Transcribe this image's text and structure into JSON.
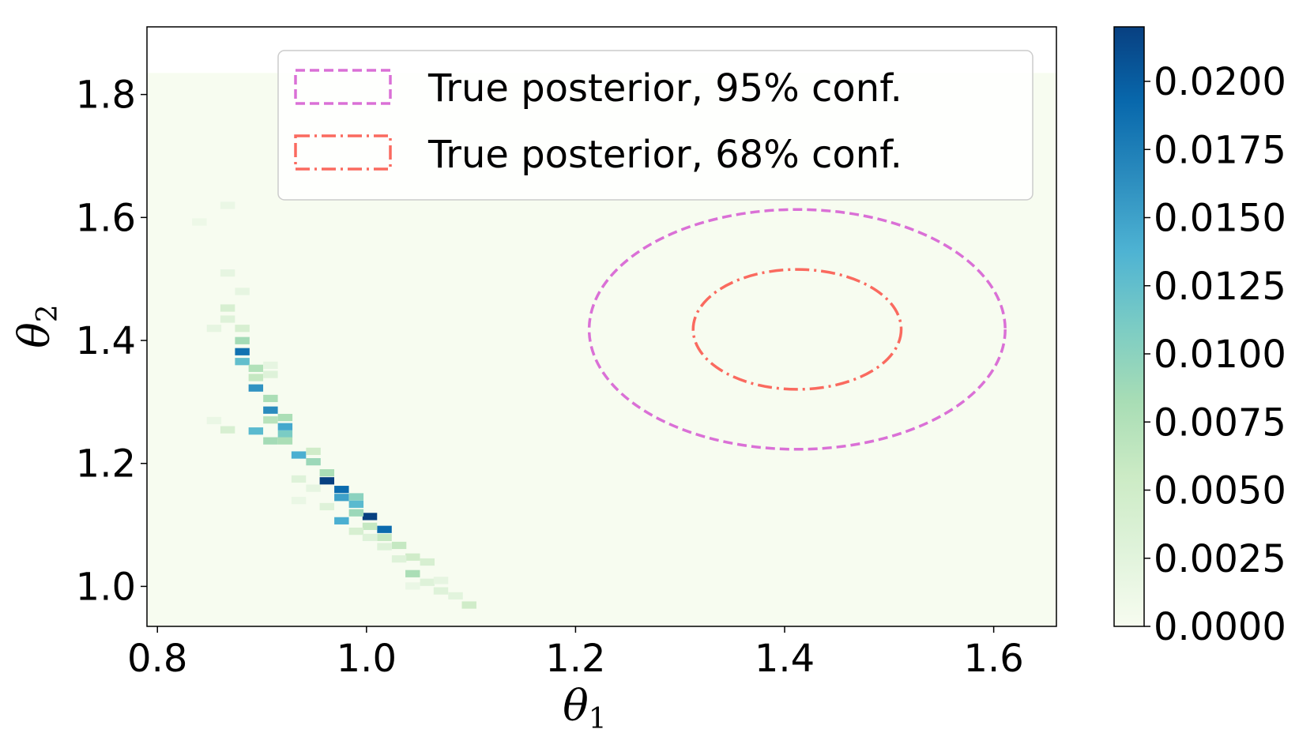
{
  "chart_data": {
    "type": "heatmap",
    "title": "",
    "xlabel": "θ",
    "xlabel_sub": "1",
    "ylabel": "θ",
    "ylabel_sub": "2",
    "xlim": [
      0.79,
      1.66
    ],
    "ylim": [
      0.935,
      1.91
    ],
    "xticks": [
      0.8,
      1.0,
      1.2,
      1.4,
      1.6
    ],
    "xtick_labels": [
      "0.8",
      "1.0",
      "1.2",
      "1.4",
      "1.6"
    ],
    "yticks": [
      1.0,
      1.2,
      1.4,
      1.6,
      1.8
    ],
    "ytick_labels": [
      "1.0",
      "1.2",
      "1.4",
      "1.6",
      "1.8"
    ],
    "colorbar": {
      "min": 0.0,
      "max": 0.022,
      "ticks": [
        0.0,
        0.0025,
        0.005,
        0.0075,
        0.01,
        0.0125,
        0.015,
        0.0175,
        0.02
      ],
      "tick_labels": [
        "0.0000",
        "0.0025",
        "0.0050",
        "0.0075",
        "0.0100",
        "0.0125",
        "0.0150",
        "0.0175",
        "0.0200"
      ],
      "colormap": "GnBu",
      "colors": [
        "#f7fcf0",
        "#e0f3db",
        "#ccebc5",
        "#a8ddb5",
        "#7bccc4",
        "#4eb3d3",
        "#2b8cbe",
        "#0868ac",
        "#084081"
      ]
    },
    "histogram": {
      "extent_x": [
        0.79,
        1.66
      ],
      "extent_y": [
        0.935,
        1.835
      ],
      "cell_dx": 0.01356,
      "cell_dy": 0.0112,
      "cells": [
        [
          0.881,
          1.382,
          0.0185
        ],
        [
          0.881,
          1.366,
          0.0125
        ],
        [
          0.881,
          1.4,
          0.0085
        ],
        [
          0.894,
          1.355,
          0.0075
        ],
        [
          0.894,
          1.323,
          0.016
        ],
        [
          0.894,
          1.34,
          0.006
        ],
        [
          0.908,
          1.287,
          0.0165
        ],
        [
          0.908,
          1.306,
          0.008
        ],
        [
          0.908,
          1.271,
          0.007
        ],
        [
          0.922,
          1.26,
          0.0145
        ],
        [
          0.922,
          1.248,
          0.011
        ],
        [
          0.922,
          1.275,
          0.008
        ],
        [
          0.894,
          1.253,
          0.013
        ],
        [
          0.908,
          1.237,
          0.0085
        ],
        [
          0.922,
          1.237,
          0.008
        ],
        [
          0.935,
          1.214,
          0.014
        ],
        [
          0.949,
          1.203,
          0.009
        ],
        [
          0.949,
          1.22,
          0.005
        ],
        [
          0.962,
          1.172,
          0.022
        ],
        [
          0.962,
          1.185,
          0.008
        ],
        [
          0.976,
          1.158,
          0.019
        ],
        [
          0.976,
          1.145,
          0.015
        ],
        [
          0.99,
          1.146,
          0.01
        ],
        [
          0.99,
          1.134,
          0.013
        ],
        [
          1.003,
          1.114,
          0.022
        ],
        [
          0.99,
          1.12,
          0.009
        ],
        [
          0.976,
          1.107,
          0.014
        ],
        [
          1.017,
          1.093,
          0.019
        ],
        [
          1.003,
          1.098,
          0.006
        ],
        [
          1.017,
          1.08,
          0.006
        ],
        [
          1.031,
          1.067,
          0.006
        ],
        [
          1.044,
          1.048,
          0.005
        ],
        [
          1.044,
          1.021,
          0.008
        ],
        [
          1.058,
          1.04,
          0.004
        ],
        [
          1.071,
          0.993,
          0.003
        ],
        [
          1.098,
          0.97,
          0.005
        ],
        [
          0.867,
          1.453,
          0.004
        ],
        [
          0.867,
          1.435,
          0.003
        ],
        [
          0.867,
          1.51,
          0.002
        ],
        [
          0.881,
          1.42,
          0.004
        ],
        [
          0.881,
          1.48,
          0.002
        ],
        [
          0.854,
          1.42,
          0.002
        ],
        [
          0.867,
          1.62,
          0.0015
        ],
        [
          0.84,
          1.593,
          0.0012
        ],
        [
          0.908,
          1.345,
          0.003
        ],
        [
          0.908,
          1.36,
          0.002
        ],
        [
          0.867,
          1.255,
          0.004
        ],
        [
          0.854,
          1.27,
          0.0015
        ],
        [
          0.935,
          1.175,
          0.003
        ],
        [
          0.949,
          1.16,
          0.002
        ],
        [
          0.962,
          1.13,
          0.003
        ],
        [
          0.99,
          1.09,
          0.004
        ],
        [
          1.003,
          1.08,
          0.003
        ],
        [
          1.017,
          1.065,
          0.003
        ],
        [
          1.031,
          1.045,
          0.003
        ],
        [
          1.058,
          1.007,
          0.003
        ],
        [
          1.071,
          1.01,
          0.002
        ],
        [
          1.085,
          0.985,
          0.0025
        ],
        [
          1.044,
          1.001,
          0.0015
        ],
        [
          0.935,
          1.14,
          0.0015
        ]
      ]
    },
    "ellipses": [
      {
        "name": "True posterior, 95% conf.",
        "center": [
          1.412,
          1.418
        ],
        "semi_x": 0.199,
        "semi_y": 0.195,
        "color": "#da70d6",
        "style": "dashed"
      },
      {
        "name": "True posterior, 68% conf.",
        "center": [
          1.412,
          1.418
        ],
        "semi_x": 0.0995,
        "semi_y": 0.0975,
        "color": "#fa6a5f",
        "style": "dashdot"
      }
    ],
    "legend_position": "upper-right"
  }
}
